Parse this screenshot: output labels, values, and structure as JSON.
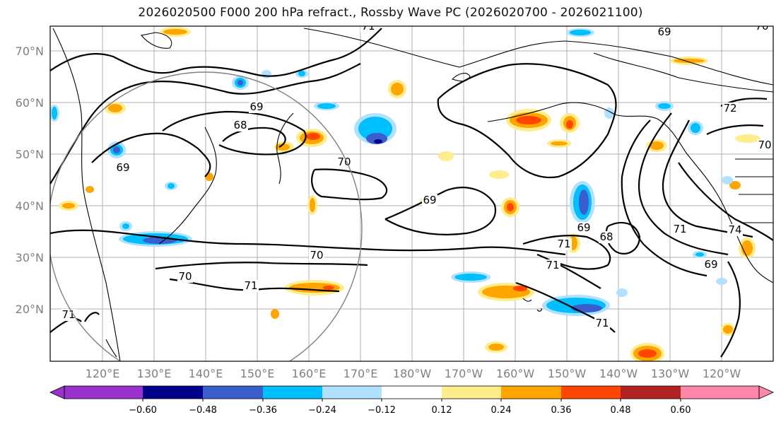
{
  "title": "2026020500 F000 200 hPa refract., Rossby Wave PC (2026020700 - 2026021100)",
  "lat_labels": [
    "70°N",
    "60°N",
    "50°N",
    "40°N",
    "30°N",
    "20°N"
  ],
  "lon_labels": [
    "120°E",
    "130°E",
    "140°E",
    "150°E",
    "160°E",
    "170°E",
    "180°W",
    "170°W",
    "160°W",
    "150°W",
    "140°W",
    "130°W",
    "120°W"
  ],
  "colorbar": {
    "ticks": [
      "−0.60",
      "−0.48",
      "−0.36",
      "−0.24",
      "−0.12",
      "0.12",
      "0.24",
      "0.36",
      "0.48",
      "0.60"
    ],
    "colors": [
      "#9932cc",
      "#00008b",
      "#3a5fcd",
      "#00bfff",
      "#b0e2ff",
      "#ffffff",
      "#ffec8b",
      "#ffa500",
      "#ff4500",
      "#b22222",
      "#ff88aa"
    ]
  },
  "contour_labels": [
    "71",
    "69",
    "70",
    "69",
    "68",
    "69",
    "70",
    "69",
    "70",
    "70",
    "71",
    "71",
    "69",
    "68",
    "71",
    "71",
    "71",
    "72",
    "74",
    "69",
    "71",
    "70"
  ]
}
